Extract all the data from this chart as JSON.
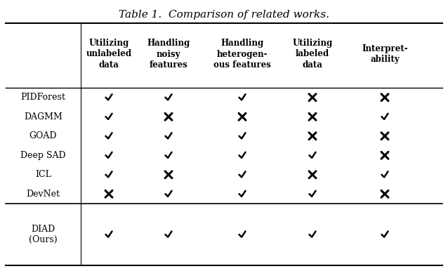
{
  "title_italic": "Table 1.",
  "title_regular": "  Comparison of related works.",
  "col_headers": [
    "Utilizing\nunlabeled\ndata",
    "Handling\nnoisy\nfeatures",
    "Handling\nheterogen-\nous features",
    "Utilizing\nlabeled\ndata",
    "Interpret-\nability"
  ],
  "row_labels": [
    "PIDForest",
    "DAGMM",
    "GOAD",
    "Deep SAD",
    "ICL",
    "DevNet",
    "DIAD\n(Ours)"
  ],
  "cell_data": [
    [
      "c",
      "c",
      "c",
      "x",
      "x"
    ],
    [
      "c",
      "x",
      "x",
      "x",
      "c"
    ],
    [
      "c",
      "c",
      "c",
      "x",
      "x"
    ],
    [
      "c",
      "c",
      "c",
      "c",
      "x"
    ],
    [
      "c",
      "x",
      "c",
      "x",
      "c"
    ],
    [
      "x",
      "c",
      "c",
      "c",
      "x"
    ],
    [
      "c",
      "c",
      "c",
      "c",
      "c"
    ]
  ],
  "background_color": "#ffffff"
}
